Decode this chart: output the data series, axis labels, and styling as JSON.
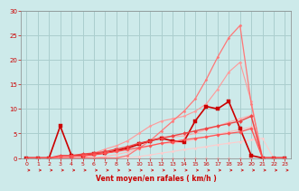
{
  "xlabel": "Vent moyen/en rafales ( km/h )",
  "background_color": "#cdeaea",
  "grid_color": "#aacece",
  "text_color": "#cc0000",
  "xlim": [
    -0.5,
    23.5
  ],
  "ylim": [
    0,
    30
  ],
  "xticks": [
    0,
    1,
    2,
    3,
    4,
    5,
    6,
    7,
    8,
    9,
    10,
    11,
    12,
    13,
    14,
    15,
    16,
    17,
    18,
    19,
    20,
    21,
    22,
    23
  ],
  "yticks": [
    0,
    5,
    10,
    15,
    20,
    25,
    30
  ],
  "series": [
    {
      "x": [
        0,
        1,
        2,
        3,
        4,
        5,
        6,
        7,
        8,
        9,
        10,
        11,
        12,
        13,
        14,
        15,
        16,
        17,
        18,
        19,
        20,
        21,
        22,
        23
      ],
      "y": [
        0,
        0,
        0,
        0,
        0,
        0,
        0,
        0,
        0,
        0,
        0,
        0,
        0,
        0,
        0,
        0,
        0,
        0,
        0,
        0,
        0,
        0,
        0,
        0
      ],
      "color": "#ffaaaa",
      "lw": 0.8,
      "marker": "D",
      "ms": 1.5
    },
    {
      "x": [
        0,
        1,
        2,
        3,
        4,
        5,
        6,
        7,
        8,
        9,
        10,
        11,
        12,
        13,
        14,
        15,
        16,
        17,
        18,
        19,
        20,
        21,
        22,
        23
      ],
      "y": [
        0,
        0,
        0,
        0,
        0,
        0,
        0,
        0,
        0,
        0,
        0.3,
        0.6,
        1.0,
        1.3,
        1.7,
        2.0,
        2.3,
        2.7,
        3.0,
        3.3,
        3.7,
        4.0,
        0,
        0
      ],
      "color": "#ffcccc",
      "lw": 0.8,
      "marker": "D",
      "ms": 1.5
    },
    {
      "x": [
        0,
        1,
        2,
        3,
        4,
        5,
        6,
        7,
        8,
        9,
        10,
        11,
        12,
        13,
        14,
        15,
        16,
        17,
        18,
        19,
        20,
        21,
        22,
        23
      ],
      "y": [
        0,
        0,
        0,
        0,
        0,
        0,
        0,
        0.3,
        0.7,
        1.2,
        1.8,
        2.5,
        3.0,
        3.0,
        3.3,
        3.8,
        4.3,
        4.8,
        5.3,
        5.8,
        6.3,
        0,
        0,
        0
      ],
      "color": "#ffbbbb",
      "lw": 0.8,
      "marker": "D",
      "ms": 1.5
    },
    {
      "x": [
        0,
        1,
        2,
        3,
        4,
        5,
        6,
        7,
        8,
        9,
        10,
        11,
        12,
        13,
        14,
        15,
        16,
        17,
        18,
        19,
        20,
        21,
        22,
        23
      ],
      "y": [
        0,
        0,
        0,
        0,
        0,
        0,
        0.5,
        1.0,
        1.5,
        2.0,
        2.7,
        3.5,
        4.3,
        4.3,
        4.5,
        5.0,
        5.8,
        6.5,
        7.3,
        8.0,
        8.7,
        0,
        0,
        0
      ],
      "color": "#ffaaaa",
      "lw": 0.8,
      "marker": "D",
      "ms": 1.5
    },
    {
      "x": [
        0,
        1,
        2,
        3,
        4,
        5,
        6,
        7,
        8,
        9,
        10,
        11,
        12,
        13,
        14,
        15,
        16,
        17,
        18,
        19,
        20,
        21,
        22,
        23
      ],
      "y": [
        0,
        0,
        0,
        0,
        0,
        0,
        1.0,
        1.8,
        2.5,
        3.5,
        5.0,
        6.5,
        7.5,
        8.0,
        8.5,
        9.5,
        11.0,
        14.0,
        17.5,
        19.5,
        11.5,
        0,
        0,
        0
      ],
      "color": "#ff9999",
      "lw": 0.8,
      "marker": "D",
      "ms": 1.5
    },
    {
      "x": [
        0,
        1,
        2,
        3,
        4,
        5,
        6,
        7,
        8,
        9,
        10,
        11,
        12,
        13,
        14,
        15,
        16,
        17,
        18,
        19,
        20,
        21,
        22,
        23
      ],
      "y": [
        0,
        0,
        0,
        0,
        0,
        0,
        0,
        0,
        0,
        0.5,
        2.0,
        3.5,
        5.5,
        7.5,
        9.5,
        12.0,
        16.0,
        20.5,
        24.5,
        27.0,
        11.0,
        0,
        0,
        0
      ],
      "color": "#ff7777",
      "lw": 0.9,
      "marker": "D",
      "ms": 1.5
    },
    {
      "x": [
        0,
        1,
        2,
        3,
        4,
        5,
        6,
        7,
        8,
        9,
        10,
        11,
        12,
        13,
        14,
        15,
        16,
        17,
        18,
        19,
        20,
        21,
        22,
        23
      ],
      "y": [
        0,
        0,
        0,
        6.5,
        0.5,
        0.5,
        0.8,
        1.0,
        1.5,
        2.0,
        2.8,
        3.5,
        4.0,
        3.5,
        3.3,
        7.5,
        10.5,
        10.0,
        11.5,
        6.0,
        0.5,
        0,
        0,
        0
      ],
      "color": "#cc0000",
      "lw": 1.2,
      "marker": "s",
      "ms": 2.5
    },
    {
      "x": [
        0,
        1,
        2,
        3,
        4,
        5,
        6,
        7,
        8,
        9,
        10,
        11,
        12,
        13,
        14,
        15,
        16,
        17,
        18,
        19,
        20,
        21,
        22,
        23
      ],
      "y": [
        0,
        0,
        0,
        0.5,
        0.5,
        0.8,
        1.0,
        1.3,
        1.8,
        2.3,
        3.0,
        3.5,
        4.0,
        4.5,
        5.0,
        5.5,
        6.0,
        6.5,
        7.0,
        7.5,
        8.5,
        0,
        0,
        0
      ],
      "color": "#ee4444",
      "lw": 1.0,
      "marker": "D",
      "ms": 2.0
    },
    {
      "x": [
        0,
        1,
        2,
        3,
        4,
        5,
        6,
        7,
        8,
        9,
        10,
        11,
        12,
        13,
        14,
        15,
        16,
        17,
        18,
        19,
        20,
        21,
        22,
        23
      ],
      "y": [
        0,
        0,
        0,
        0.3,
        0.3,
        0.5,
        0.7,
        1.0,
        1.3,
        1.7,
        2.1,
        2.5,
        3.0,
        3.3,
        3.7,
        4.0,
        4.3,
        4.7,
        5.0,
        5.3,
        6.0,
        0,
        0,
        0
      ],
      "color": "#ff5555",
      "lw": 0.9,
      "marker": "D",
      "ms": 1.8
    }
  ]
}
